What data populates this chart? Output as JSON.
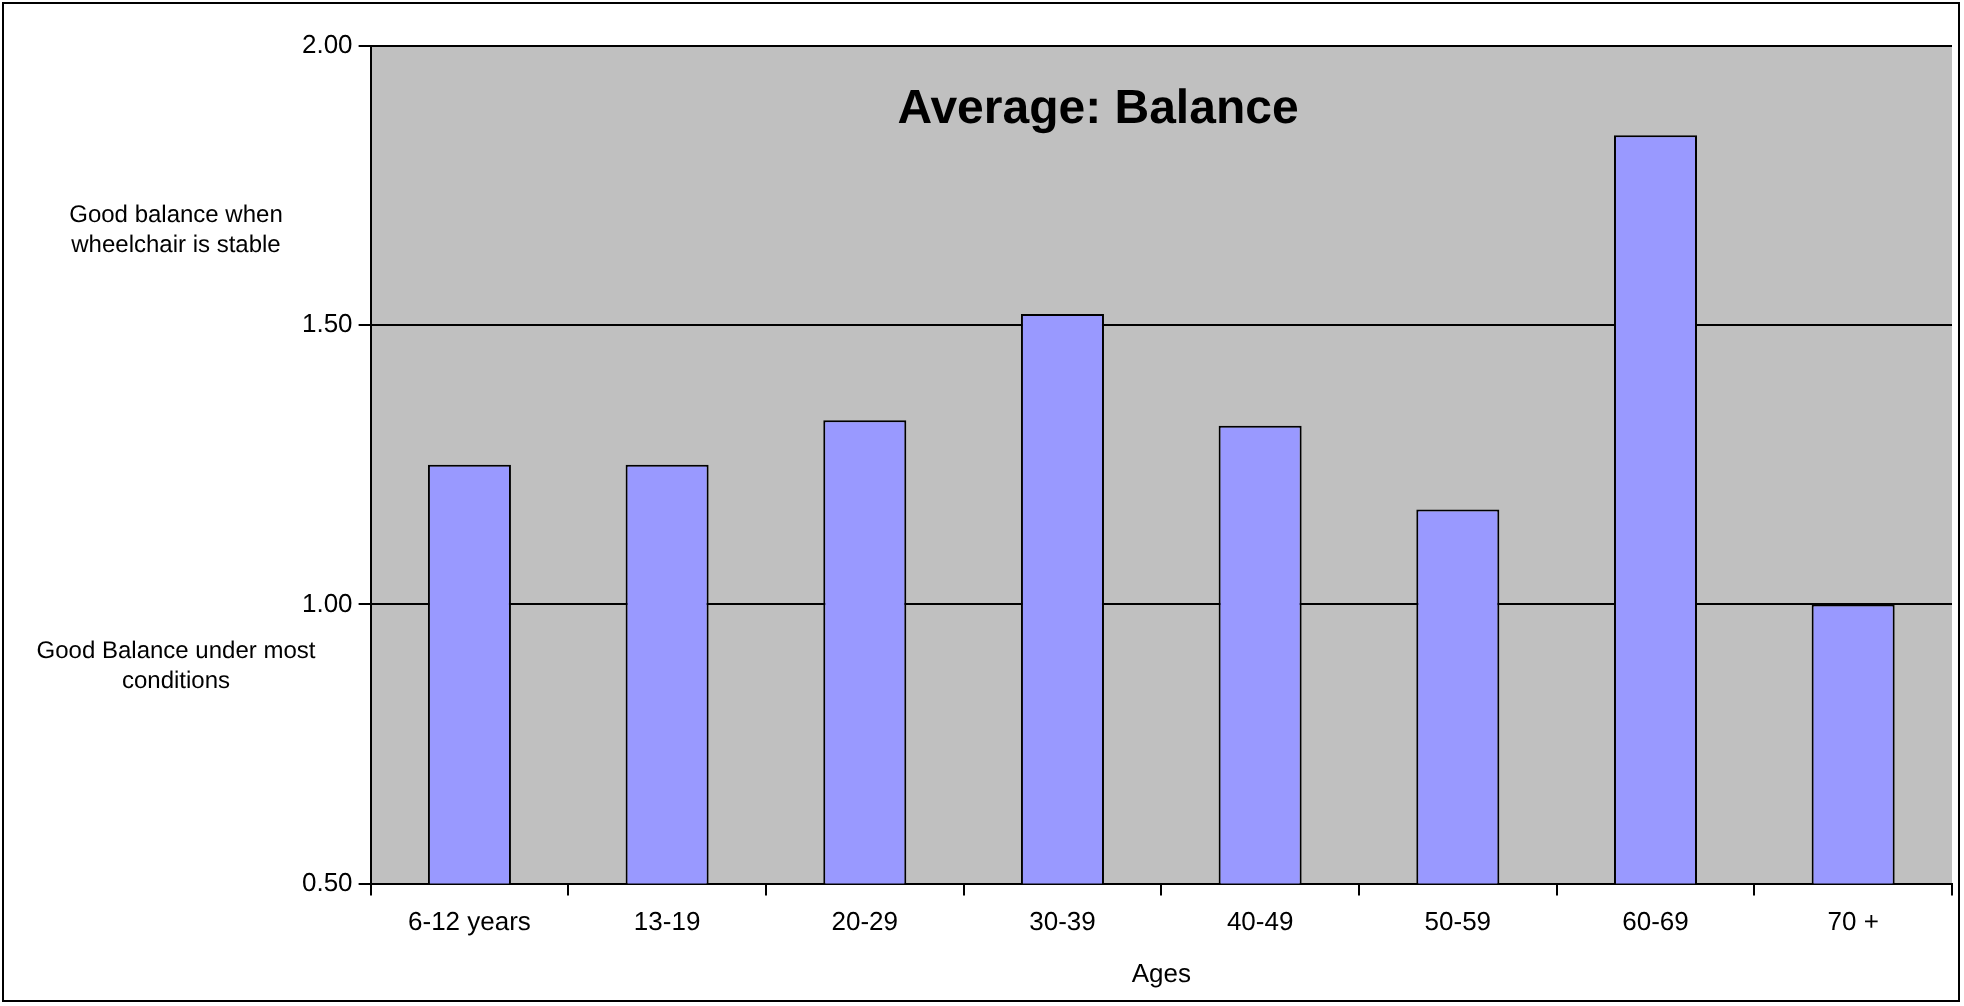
{
  "chart_data": {
    "type": "bar",
    "title": "Average: Balance",
    "xlabel": "Ages",
    "categories": [
      "6-12 years",
      "13-19",
      "20-29",
      "30-39",
      "40-49",
      "50-59",
      "60-69",
      "70 +"
    ],
    "values": [
      1.25,
      1.25,
      1.33,
      1.52,
      1.32,
      1.17,
      1.84,
      1.0
    ],
    "color": "#9999ff",
    "ylim": [
      0.5,
      2.0
    ],
    "yticks": [
      {
        "value": 0.5,
        "label": "0.50"
      },
      {
        "value": 1.0,
        "label": "1.00"
      },
      {
        "value": 1.5,
        "label": "1.50"
      },
      {
        "value": 2.0,
        "label": "2.00"
      }
    ],
    "grid": "y",
    "legend": false,
    "annotations": [
      "Good balance when wheelchair is stable",
      "Good Balance under most conditions"
    ]
  }
}
